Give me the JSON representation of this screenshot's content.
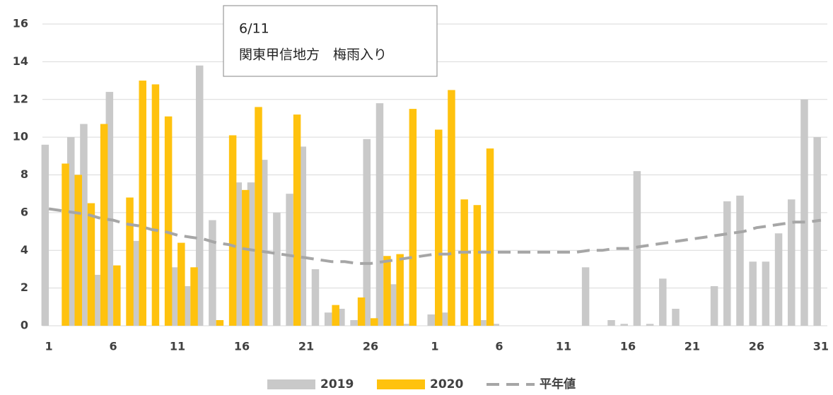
{
  "chart_data": {
    "type": "bar",
    "categories": [
      "1",
      null,
      null,
      null,
      null,
      "6",
      null,
      null,
      null,
      null,
      "11",
      null,
      null,
      null,
      null,
      "16",
      null,
      null,
      null,
      null,
      "21",
      null,
      null,
      null,
      null,
      "26",
      null,
      null,
      null,
      null,
      "1",
      null,
      null,
      null,
      null,
      "6",
      null,
      null,
      null,
      null,
      "11",
      null,
      null,
      null,
      null,
      "16",
      null,
      null,
      null,
      null,
      "21",
      null,
      null,
      null,
      null,
      "26",
      null,
      null,
      null,
      null,
      "31"
    ],
    "series": [
      {
        "name": "2019",
        "type": "bar",
        "color": "#c9c9c9",
        "values": [
          9.6,
          0,
          10,
          10.7,
          2.7,
          12.4,
          0,
          4.5,
          0,
          0,
          3.1,
          2.1,
          13.8,
          5.6,
          0,
          7.6,
          7.6,
          8.8,
          6.0,
          7.0,
          9.5,
          3.0,
          0.7,
          0.9,
          0.3,
          9.9,
          11.8,
          2.2,
          0.1,
          0,
          0.6,
          0.7,
          0,
          0,
          0.3,
          0.1,
          0,
          0,
          0,
          0,
          0,
          0,
          3.1,
          0,
          0.3,
          0.1,
          8.2,
          0.1,
          2.5,
          0.9,
          0,
          0,
          2.1,
          6.6,
          6.9,
          3.4,
          3.4,
          4.9,
          6.7,
          12.0,
          10.0
        ]
      },
      {
        "name": "2020",
        "type": "bar",
        "color": "#ffc20e",
        "values": [
          0,
          8.6,
          8.0,
          6.5,
          10.7,
          3.2,
          6.8,
          13.0,
          12.8,
          11.1,
          4.4,
          3.1,
          0,
          0.3,
          10.1,
          7.2,
          11.6,
          0,
          0,
          11.2,
          0,
          0,
          1.1,
          0,
          1.5,
          0.4,
          3.7,
          3.8,
          11.5,
          0,
          10.4,
          12.5,
          6.7,
          6.4,
          9.4,
          null,
          null,
          null,
          null,
          null,
          null,
          null,
          null,
          null,
          null,
          null,
          null,
          null,
          null,
          null,
          null,
          null,
          null,
          null,
          null,
          null,
          null,
          null,
          null,
          null,
          null
        ]
      },
      {
        "name": "平年値",
        "type": "line",
        "color": "#a6a6a6",
        "values": [
          6.2,
          6.1,
          6.0,
          5.9,
          5.7,
          5.6,
          5.4,
          5.3,
          5.1,
          5.0,
          4.8,
          4.7,
          4.6,
          4.4,
          4.3,
          4.1,
          4.0,
          3.9,
          3.8,
          3.7,
          3.6,
          3.5,
          3.4,
          3.4,
          3.3,
          3.3,
          3.4,
          3.5,
          3.6,
          3.7,
          3.8,
          3.8,
          3.9,
          3.9,
          3.9,
          3.9,
          3.9,
          3.9,
          3.9,
          3.9,
          3.9,
          3.9,
          4.0,
          4.0,
          4.1,
          4.1,
          4.2,
          4.3,
          4.4,
          4.5,
          4.6,
          4.7,
          4.8,
          4.9,
          5.0,
          5.2,
          5.3,
          5.4,
          5.5,
          5.5,
          5.6
        ]
      }
    ],
    "ylim": [
      0,
      16
    ],
    "yticks": [
      0,
      2,
      4,
      6,
      8,
      10,
      12,
      14,
      16
    ],
    "grid": true,
    "annotation": [
      "6/11",
      "関東甲信地方　梅雨入り"
    ]
  }
}
